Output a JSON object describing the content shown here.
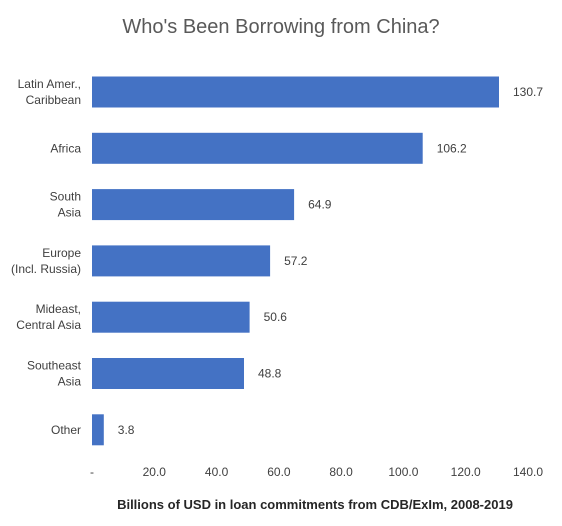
{
  "chart_data": {
    "type": "bar",
    "orientation": "horizontal",
    "title": "Who's Been Borrowing from China?",
    "xlabel": "Billions of USD in loan commitments from CDB/ExIm, 2008-2019",
    "ylabel": "",
    "categories": [
      [
        "Latin Amer.,",
        "Caribbean"
      ],
      [
        "Africa"
      ],
      [
        "South",
        "Asia"
      ],
      [
        "Europe",
        "(Incl. Russia)"
      ],
      [
        "Mideast,",
        "Central Asia"
      ],
      [
        "Southeast",
        "Asia"
      ],
      [
        "Other"
      ]
    ],
    "values": [
      130.7,
      106.2,
      64.9,
      57.2,
      50.6,
      48.8,
      3.8
    ],
    "value_labels": [
      "130.7",
      "106.2",
      "64.9",
      "57.2",
      "50.6",
      "48.8",
      "3.8"
    ],
    "xlim": [
      0,
      140
    ],
    "xticks": [
      0,
      20,
      40,
      60,
      80,
      100,
      120,
      140
    ],
    "xtick_labels": [
      "-",
      "20.0",
      "40.0",
      "60.0",
      "80.0",
      "100.0",
      "120.0",
      "140.0"
    ],
    "grid": false,
    "legend": "none",
    "bar_color": "#4472C4"
  }
}
